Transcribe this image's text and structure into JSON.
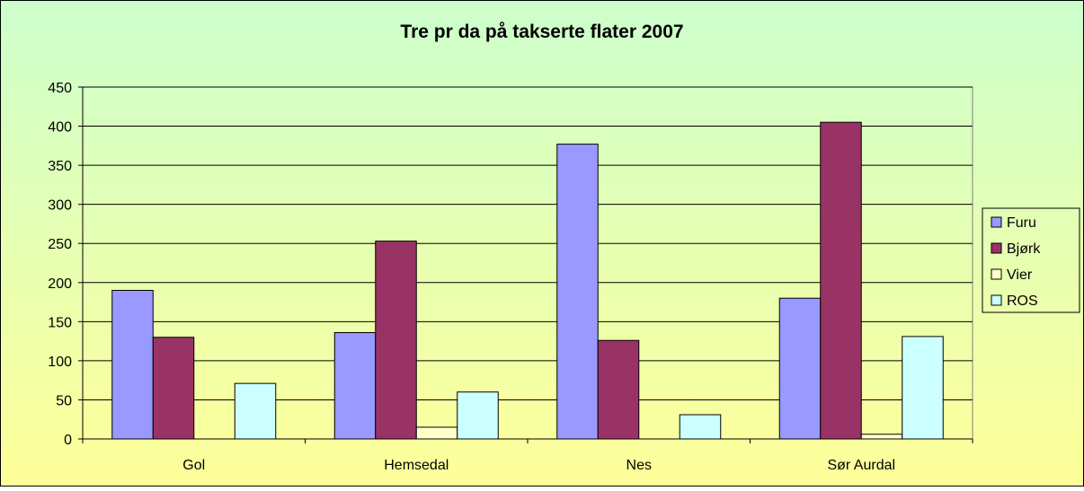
{
  "chart_data": {
    "type": "bar",
    "title": "Tre pr da på takserte flater 2007",
    "categories": [
      "Gol",
      "Hemsedal",
      "Nes",
      "Sør Aurdal"
    ],
    "series": [
      {
        "name": "Furu",
        "color": "#9999ff",
        "values": [
          190,
          136,
          377,
          180
        ]
      },
      {
        "name": "Bjørk",
        "color": "#993366",
        "values": [
          130,
          253,
          126,
          405
        ]
      },
      {
        "name": "Vier",
        "color": "#ffffcc",
        "values": [
          0,
          15,
          0,
          6
        ]
      },
      {
        "name": "ROS",
        "color": "#ccffff",
        "values": [
          71,
          60,
          31,
          131
        ]
      }
    ],
    "ylim": [
      0,
      450
    ],
    "yticks": [
      0,
      50,
      100,
      150,
      200,
      250,
      300,
      350,
      400,
      450
    ],
    "grid": true,
    "legend": "right"
  }
}
